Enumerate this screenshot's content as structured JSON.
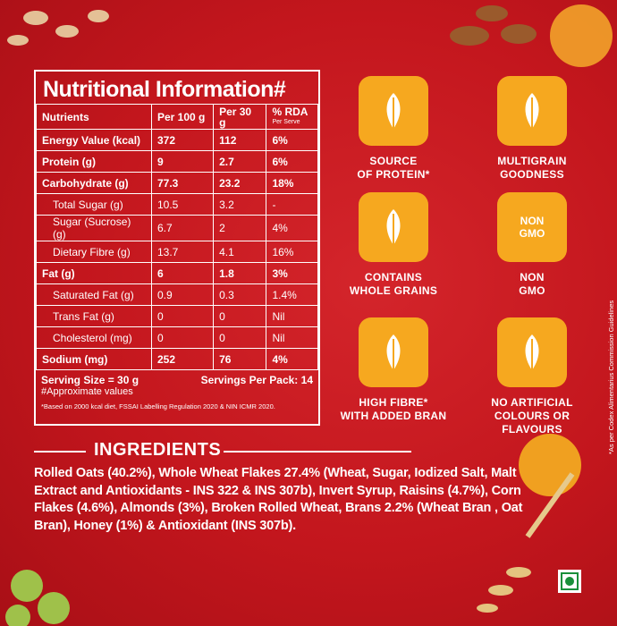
{
  "nutrition": {
    "title": "Nutritional Information#",
    "columns": [
      "Nutrients",
      "Per 100 g",
      "Per 30 g",
      "% RDA"
    ],
    "rda_note": "Per Serve",
    "rows": [
      [
        "Energy Value (kcal)",
        "372",
        "112",
        "6%"
      ],
      [
        "Protein (g)",
        "9",
        "2.7",
        "6%"
      ],
      [
        "Carbohydrate (g)",
        "77.3",
        "23.2",
        "18%"
      ],
      [
        "Total Sugar (g)",
        "10.5",
        "3.2",
        "-"
      ],
      [
        "Sugar (Sucrose) (g)",
        "6.7",
        "2",
        "4%"
      ],
      [
        "Dietary Fibre (g)",
        "13.7",
        "4.1",
        "16%"
      ],
      [
        "Fat (g)",
        "6",
        "1.8",
        "3%"
      ],
      [
        "Saturated Fat (g)",
        "0.9",
        "0.3",
        "1.4%"
      ],
      [
        "Trans Fat (g)",
        "0",
        "0",
        "Nil"
      ],
      [
        "Cholesterol (mg)",
        "0",
        "0",
        "Nil"
      ],
      [
        "Sodium (mg)",
        "252",
        "76",
        "4%"
      ]
    ],
    "serving_size": "Serving Size = 30 g",
    "servings_per_pack": "Servings Per Pack: 14",
    "approx": "#Approximate values",
    "footnote": "*Based on 2000 kcal diet, FSSAI Labelling Regulation 2020 & NIN ICMR 2020."
  },
  "badges": [
    {
      "label": [
        "SOURCE",
        "OF PROTEIN*"
      ]
    },
    {
      "label": [
        "MULTIGRAIN",
        "GOODNESS"
      ]
    },
    {
      "label": [
        "CONTAINS",
        "WHOLE GRAINS"
      ]
    },
    {
      "icon_text": [
        "NON",
        "GMO"
      ],
      "label": [
        "NON",
        "GMO"
      ]
    },
    {
      "label": [
        "HIGH FIBRE*",
        "WITH ADDED BRAN"
      ]
    },
    {
      "label": [
        "NO ARTIFICIAL",
        "COLOURS OR FLAVOURS"
      ]
    }
  ],
  "ingredients": {
    "heading": "INGREDIENTS",
    "text": "Rolled Oats (40.2%), Whole Wheat Flakes 27.4% (Wheat, Sugar, Iodized Salt, Malt Extract and Antioxidants - INS 322 & INS 307b), Invert Syrup, Raisins (4.7%), Corn Flakes (4.6%), Almonds (3%), Broken Rolled Wheat, Brans 2.2% (Wheat Bran , Oat Bran), Honey (1%) & Antioxidant (INS 307b)."
  },
  "side_note": "*As per Codex Alimentarius Commission Guidelines"
}
